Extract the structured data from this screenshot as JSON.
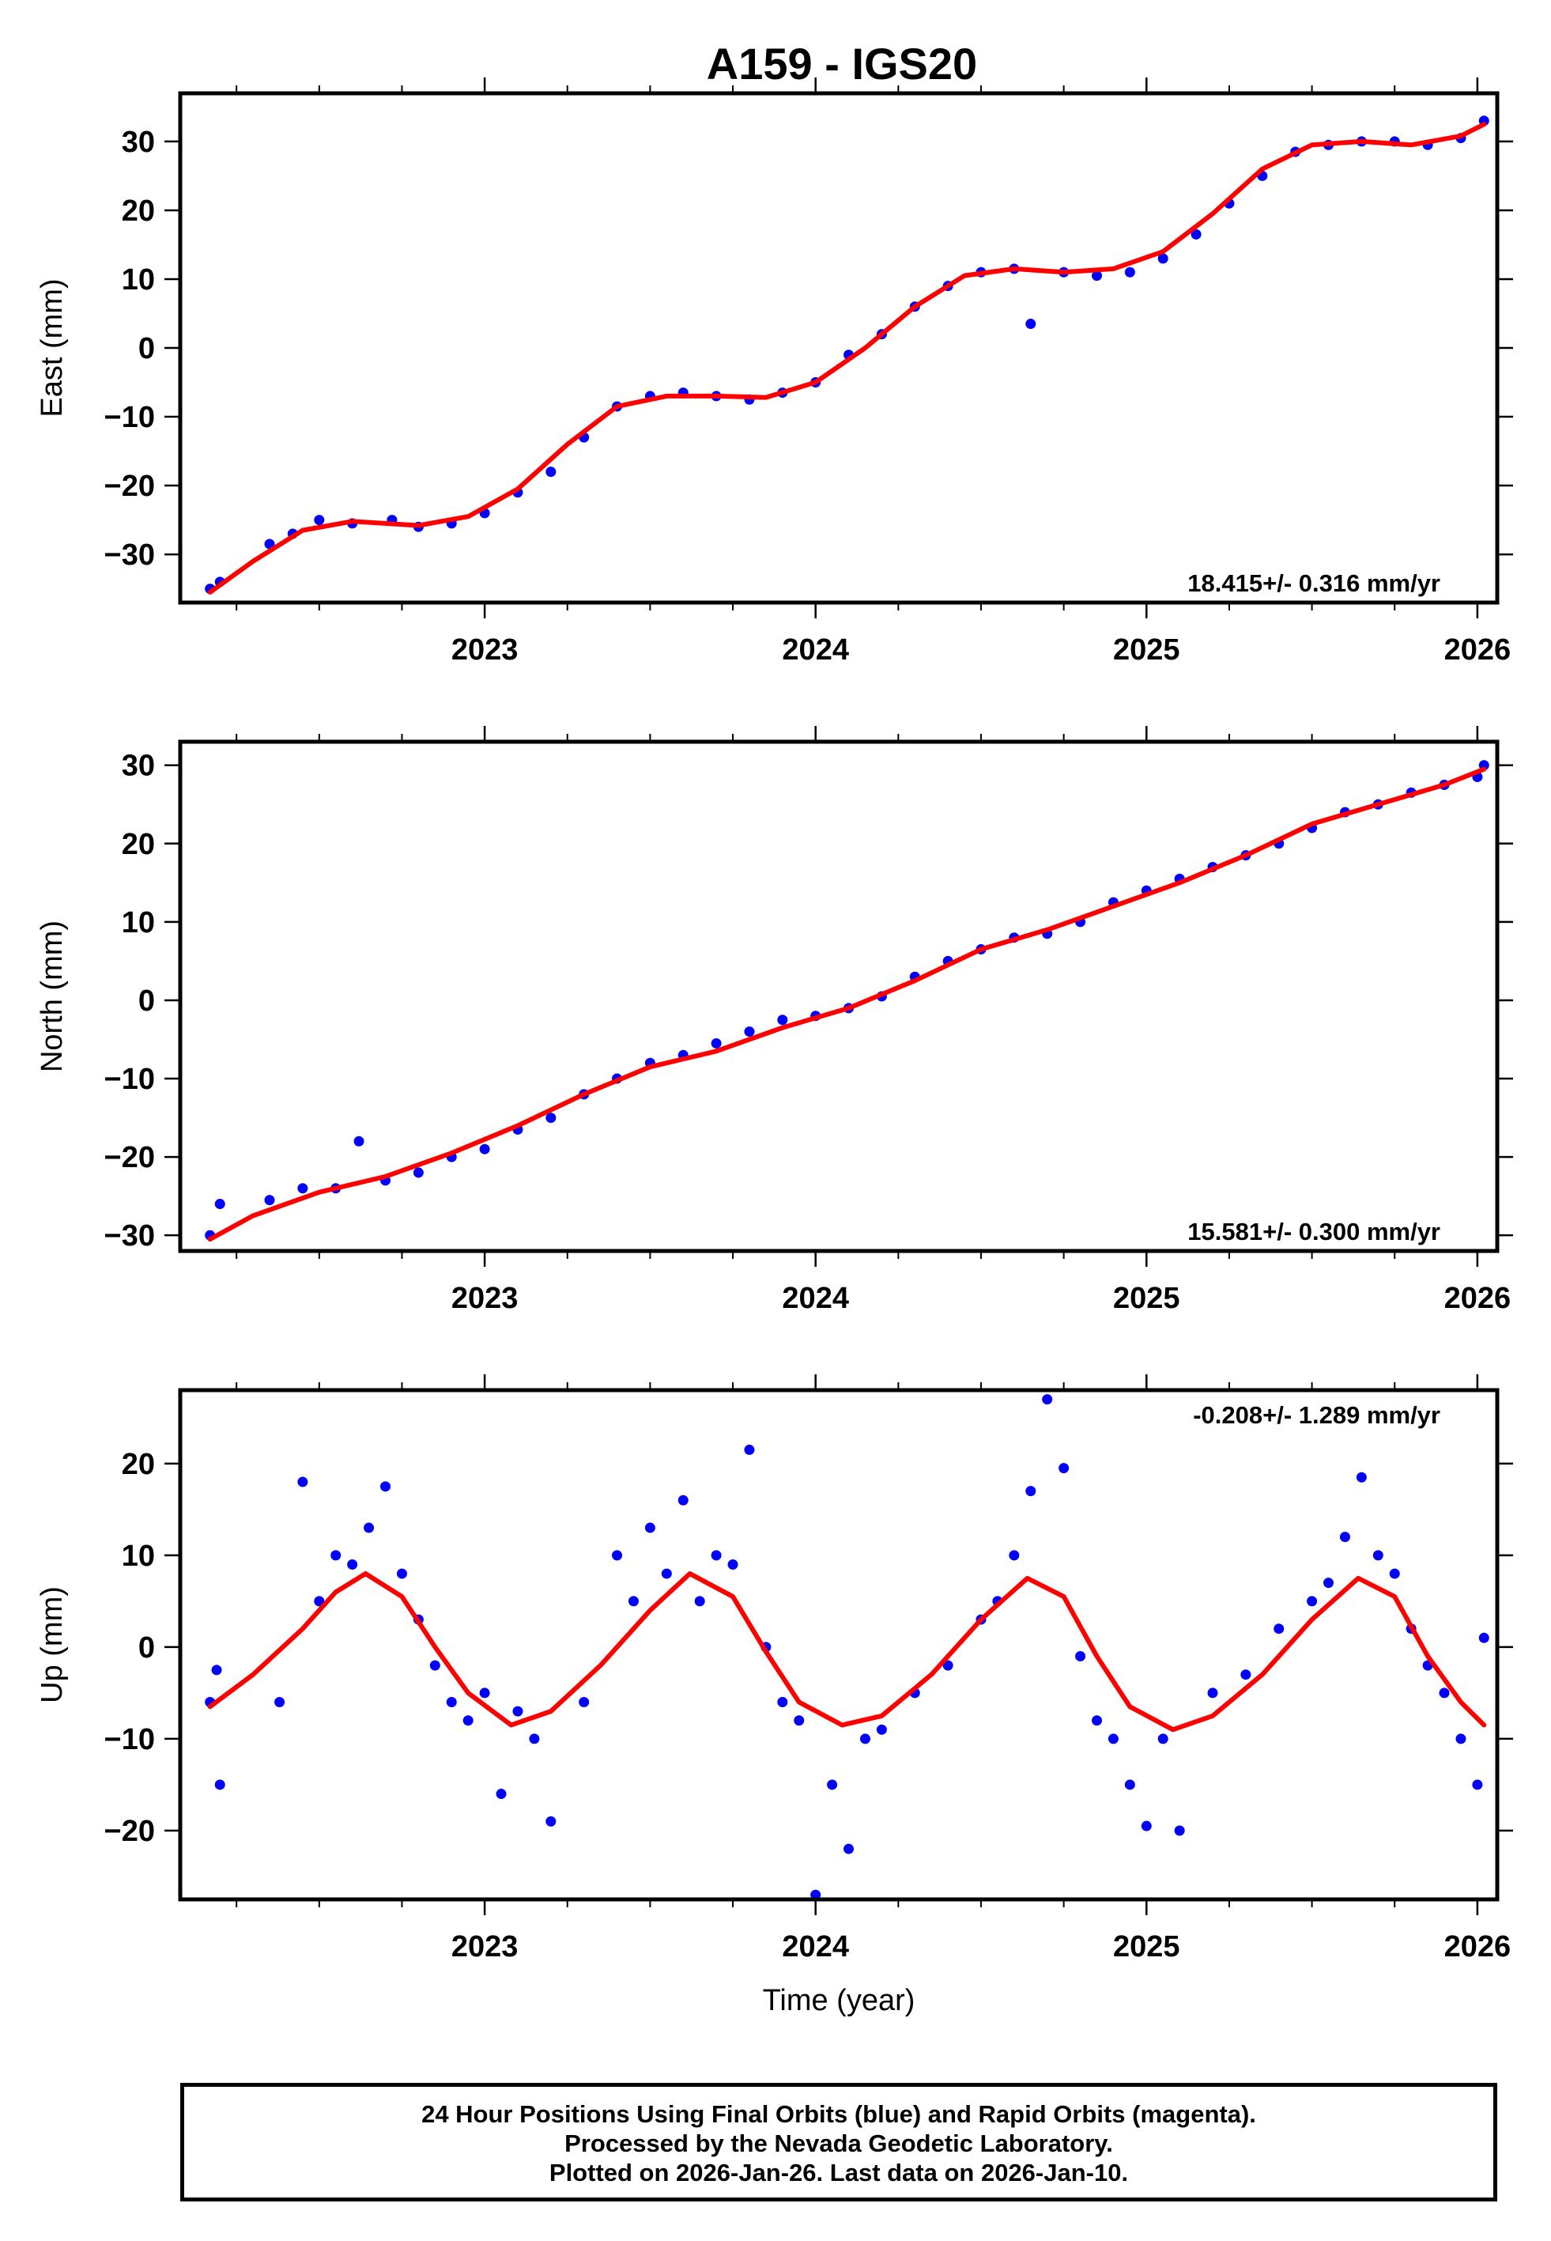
{
  "title": "A159 - IGS20",
  "colors": {
    "points": "#0000ff",
    "fit": "#ff0000",
    "frame": "#000000"
  },
  "chart_data": [
    {
      "type": "scatter",
      "id": "east",
      "ylabel": "East (mm)",
      "xlabel": "",
      "xlim": [
        2022.08,
        2026.06
      ],
      "ylim": [
        -37,
        37
      ],
      "xticks": [
        2023,
        2024,
        2025,
        2026
      ],
      "yticks": [
        -30,
        -20,
        -10,
        0,
        10,
        20,
        30
      ],
      "rate_label": "18.415+/- 0.316 mm/yr",
      "rate_position": "bottom-right",
      "fit_x": [
        2022.17,
        2022.3,
        2022.45,
        2022.6,
        2022.8,
        2022.95,
        2023.1,
        2023.25,
        2023.4,
        2023.55,
        2023.7,
        2023.85,
        2024.0,
        2024.15,
        2024.3,
        2024.45,
        2024.6,
        2024.75,
        2024.9,
        2025.05,
        2025.2,
        2025.35,
        2025.5,
        2025.65,
        2025.8,
        2025.95,
        2026.02
      ],
      "fit_y": [
        -35.5,
        -31,
        -26.5,
        -25.2,
        -25.8,
        -24.5,
        -20.5,
        -14,
        -8.5,
        -7,
        -7,
        -7.2,
        -5,
        0,
        6,
        10.5,
        11.5,
        11,
        11.5,
        14,
        19.5,
        26,
        29.5,
        30,
        29.5,
        30.8,
        32.5
      ],
      "series": [
        {
          "name": "Final Orbits",
          "x": [
            2022.17,
            2022.2,
            2022.35,
            2022.42,
            2022.5,
            2022.6,
            2022.72,
            2022.8,
            2022.9,
            2023.0,
            2023.1,
            2023.2,
            2023.3,
            2023.4,
            2023.5,
            2023.6,
            2023.7,
            2023.8,
            2023.9,
            2024.0,
            2024.1,
            2024.2,
            2024.3,
            2024.4,
            2024.5,
            2024.6,
            2024.65,
            2024.75,
            2024.85,
            2024.95,
            2025.05,
            2025.15,
            2025.25,
            2025.35,
            2025.45,
            2025.55,
            2025.65,
            2025.75,
            2025.85,
            2025.95,
            2026.02
          ],
          "y": [
            -35,
            -34,
            -28.5,
            -27,
            -25,
            -25.5,
            -25,
            -26,
            -25.5,
            -24,
            -21,
            -18,
            -13,
            -8.5,
            -7,
            -6.5,
            -7,
            -7.5,
            -6.5,
            -5,
            -1,
            2,
            6,
            9,
            11,
            11.5,
            3.5,
            11,
            10.5,
            11,
            13,
            16.5,
            21,
            25,
            28.5,
            29.5,
            30,
            30,
            29.5,
            30.5,
            33
          ]
        }
      ]
    },
    {
      "type": "scatter",
      "id": "north",
      "ylabel": "North (mm)",
      "xlabel": "",
      "xlim": [
        2022.08,
        2026.06
      ],
      "ylim": [
        -32,
        33
      ],
      "xticks": [
        2023,
        2024,
        2025,
        2026
      ],
      "yticks": [
        -30,
        -20,
        -10,
        0,
        10,
        20,
        30
      ],
      "rate_label": "15.581+/- 0.300 mm/yr",
      "rate_position": "bottom-right",
      "fit_x": [
        2022.17,
        2022.3,
        2022.5,
        2022.7,
        2022.9,
        2023.1,
        2023.3,
        2023.5,
        2023.7,
        2023.9,
        2024.1,
        2024.3,
        2024.5,
        2024.7,
        2024.9,
        2025.1,
        2025.3,
        2025.5,
        2025.7,
        2025.9,
        2026.02
      ],
      "fit_y": [
        -30.5,
        -27.5,
        -24.5,
        -22.5,
        -19.5,
        -16,
        -12,
        -8.5,
        -6.5,
        -3.5,
        -1,
        2.5,
        6.5,
        9,
        12,
        15,
        18.5,
        22.5,
        25,
        27.5,
        29.5
      ],
      "series": [
        {
          "name": "Final Orbits",
          "x": [
            2022.17,
            2022.2,
            2022.35,
            2022.45,
            2022.55,
            2022.62,
            2022.7,
            2022.8,
            2022.9,
            2023.0,
            2023.1,
            2023.2,
            2023.3,
            2023.4,
            2023.5,
            2023.6,
            2023.7,
            2023.8,
            2023.9,
            2024.0,
            2024.1,
            2024.2,
            2024.3,
            2024.4,
            2024.5,
            2024.6,
            2024.7,
            2024.8,
            2024.9,
            2025.0,
            2025.1,
            2025.2,
            2025.3,
            2025.4,
            2025.5,
            2025.6,
            2025.7,
            2025.8,
            2025.9,
            2026.0,
            2026.02
          ],
          "y": [
            -30,
            -26,
            -25.5,
            -24,
            -24,
            -18,
            -23,
            -22,
            -20,
            -19,
            -16.5,
            -15,
            -12,
            -10,
            -8,
            -7,
            -5.5,
            -4,
            -2.5,
            -2,
            -1,
            0.5,
            3,
            5,
            6.5,
            8,
            8.5,
            10,
            12.5,
            14,
            15.5,
            17,
            18.5,
            20,
            22,
            24,
            25,
            26.5,
            27.5,
            28.5,
            30
          ]
        }
      ]
    },
    {
      "type": "scatter",
      "id": "up",
      "ylabel": "Up (mm)",
      "xlabel": "Time (year)",
      "xlim": [
        2022.08,
        2026.06
      ],
      "ylim": [
        -27.5,
        28
      ],
      "xticks": [
        2023,
        2024,
        2025,
        2026
      ],
      "yticks": [
        -20,
        -10,
        0,
        10,
        20
      ],
      "rate_label": "-0.208+/- 1.289 mm/yr",
      "rate_position": "top-right",
      "fit_x": [
        2022.17,
        2022.3,
        2022.45,
        2022.55,
        2022.64,
        2022.75,
        2022.85,
        2022.95,
        2023.08,
        2023.2,
        2023.35,
        2023.5,
        2023.62,
        2023.75,
        2023.85,
        2023.95,
        2024.08,
        2024.2,
        2024.35,
        2024.5,
        2024.64,
        2024.75,
        2024.85,
        2024.95,
        2025.08,
        2025.2,
        2025.35,
        2025.5,
        2025.64,
        2025.75,
        2025.85,
        2025.95,
        2026.02
      ],
      "fit_y": [
        -6.5,
        -3,
        2,
        6,
        8,
        5.5,
        0,
        -5,
        -8.5,
        -7,
        -2,
        4,
        8,
        5.5,
        -0.5,
        -6,
        -8.5,
        -7.5,
        -3,
        3,
        7.5,
        5.5,
        -1,
        -6.5,
        -9,
        -7.5,
        -3,
        3,
        7.5,
        5.5,
        -1,
        -6,
        -8.5
      ],
      "series": [
        {
          "name": "Final Orbits",
          "x": [
            2022.17,
            2022.19,
            2022.2,
            2022.38,
            2022.45,
            2022.5,
            2022.55,
            2022.6,
            2022.65,
            2022.7,
            2022.75,
            2022.8,
            2022.85,
            2022.9,
            2022.95,
            2023.0,
            2023.05,
            2023.1,
            2023.15,
            2023.2,
            2023.3,
            2023.4,
            2023.45,
            2023.5,
            2023.55,
            2023.6,
            2023.65,
            2023.7,
            2023.75,
            2023.8,
            2023.85,
            2023.9,
            2023.95,
            2024.0,
            2024.05,
            2024.1,
            2024.15,
            2024.2,
            2024.3,
            2024.4,
            2024.5,
            2024.55,
            2024.6,
            2024.65,
            2024.7,
            2024.75,
            2024.8,
            2024.85,
            2024.9,
            2024.95,
            2025.0,
            2025.05,
            2025.1,
            2025.2,
            2025.3,
            2025.4,
            2025.5,
            2025.55,
            2025.6,
            2025.65,
            2025.7,
            2025.75,
            2025.8,
            2025.85,
            2025.9,
            2025.95,
            2026.0,
            2026.02
          ],
          "y": [
            -6,
            -2.5,
            -15,
            -6,
            18,
            5,
            10,
            9,
            13,
            17.5,
            8,
            3,
            -2,
            -6,
            -8,
            -5,
            -16,
            -7,
            -10,
            -19,
            -6,
            10,
            5,
            13,
            8,
            16,
            5,
            10,
            9,
            21.5,
            0,
            -6,
            -8,
            -27,
            -15,
            -22,
            -10,
            -9,
            -5,
            -2,
            3,
            5,
            10,
            17,
            27,
            19.5,
            -1,
            -8,
            -10,
            -15,
            -19.5,
            -10,
            -20,
            -5,
            -3,
            2,
            5,
            7,
            12,
            18.5,
            10,
            8,
            2,
            -2,
            -5,
            -10,
            -15,
            1
          ]
        }
      ]
    }
  ],
  "footer": {
    "line1": "24 Hour Positions Using Final Orbits (blue) and Rapid Orbits (magenta).",
    "line2": "Processed by the Nevada Geodetic Laboratory.",
    "line3": "Plotted on 2026-Jan-26. Last data on 2026-Jan-10."
  }
}
